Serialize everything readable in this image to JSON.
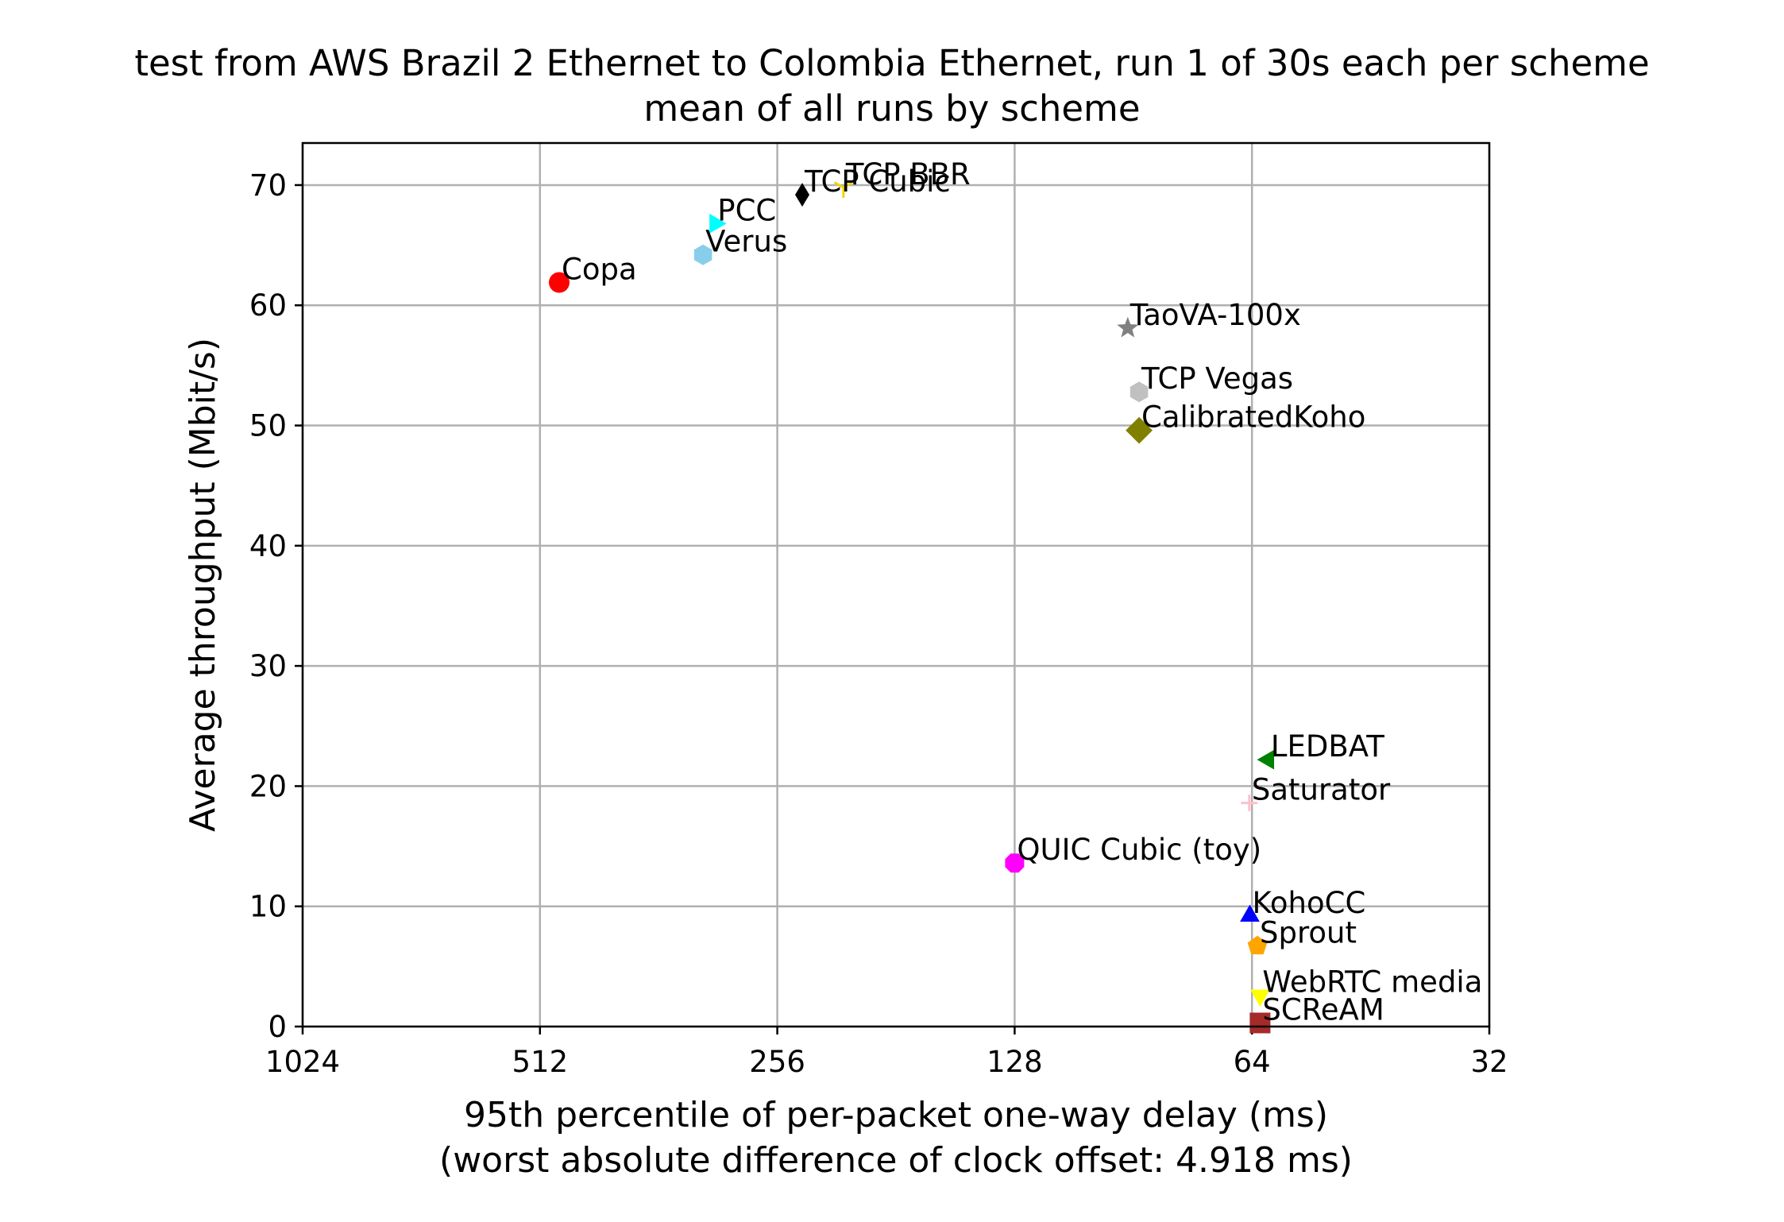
{
  "chart_data": {
    "type": "scatter",
    "title": "test from AWS Brazil 2 Ethernet to Colombia Ethernet, run 1 of 30s each per scheme",
    "subtitle": "mean of all runs by scheme",
    "xlabel": "95th percentile of per-packet one-way delay (ms)",
    "xlabel2": "(worst absolute difference of clock offset: 4.918 ms)",
    "ylabel": "Average throughput (Mbit/s)",
    "x_scale": "log2",
    "x_inverted": true,
    "xlim": [
      1024,
      32
    ],
    "ylim": [
      0,
      73.5
    ],
    "grid": true,
    "x_ticks": [
      1024,
      512,
      256,
      128,
      64,
      32
    ],
    "x_tick_labels": [
      "1024",
      "512",
      "256",
      "128",
      "64",
      "32"
    ],
    "y_ticks": [
      0,
      10,
      20,
      30,
      40,
      50,
      60,
      70
    ],
    "y_tick_labels": [
      "0",
      "10",
      "20",
      "30",
      "40",
      "50",
      "60",
      "70"
    ],
    "points": [
      {
        "name": "TCP BBR",
        "x": 211,
        "y": 69.8,
        "marker": "tri_down",
        "color": "#f2d600"
      },
      {
        "name": "TCP Cubic",
        "x": 238,
        "y": 69.2,
        "marker": "thin_diamond",
        "color": "#000000"
      },
      {
        "name": "PCC",
        "x": 307,
        "y": 66.8,
        "marker": "triangle_right",
        "color": "#00ffff"
      },
      {
        "name": "Verus",
        "x": 318,
        "y": 64.2,
        "marker": "hexagon",
        "color": "#87ceeb"
      },
      {
        "name": "Copa",
        "x": 484,
        "y": 61.9,
        "marker": "circle",
        "color": "#ff0000"
      },
      {
        "name": "TaoVA-100x",
        "x": 92,
        "y": 58.1,
        "marker": "star",
        "color": "#808080"
      },
      {
        "name": "TCP Vegas",
        "x": 89,
        "y": 52.8,
        "marker": "hexagon",
        "color": "#c0c0c0"
      },
      {
        "name": "CalibratedKoho",
        "x": 89,
        "y": 49.6,
        "marker": "diamond",
        "color": "#808000"
      },
      {
        "name": "LEDBAT",
        "x": 61,
        "y": 22.2,
        "marker": "triangle_left",
        "color": "#008000"
      },
      {
        "name": "Saturator",
        "x": 64.5,
        "y": 18.6,
        "marker": "plus",
        "color": "#ffc0cb"
      },
      {
        "name": "QUIC Cubic (toy)",
        "x": 128,
        "y": 13.6,
        "marker": "octagon",
        "color": "#ff00ff"
      },
      {
        "name": "KohoCC",
        "x": 64.4,
        "y": 9.2,
        "marker": "triangle_up",
        "color": "#0000ff"
      },
      {
        "name": "Sprout",
        "x": 63.0,
        "y": 6.7,
        "marker": "pentagon",
        "color": "#ffa500"
      },
      {
        "name": "WebRTC media",
        "x": 62.5,
        "y": 2.6,
        "marker": "triangle_down",
        "color": "#ffff00"
      },
      {
        "name": "SCReAM",
        "x": 62.5,
        "y": 0.3,
        "marker": "square",
        "color": "#a52a2a"
      }
    ]
  }
}
